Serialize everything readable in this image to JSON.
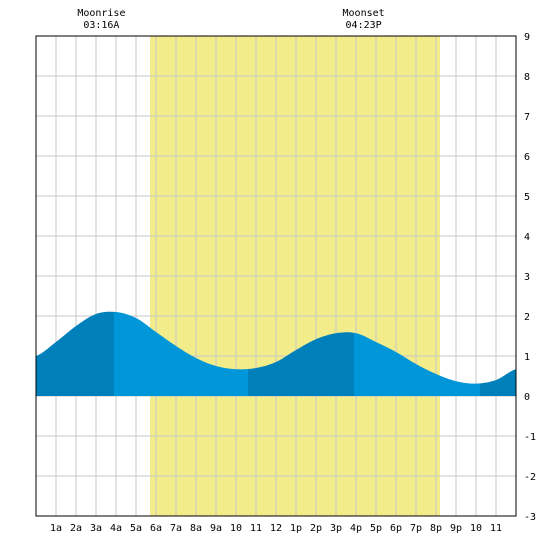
{
  "chart_data": {
    "type": "area",
    "title": "",
    "xlabel": "",
    "ylabel": "",
    "x_range": [
      0,
      24
    ],
    "ylim": [
      -3,
      9
    ],
    "y_ticks": [
      -3,
      -2,
      -1,
      0,
      1,
      2,
      3,
      4,
      5,
      6,
      7,
      8,
      9
    ],
    "x_ticks": [
      {
        "x": 1,
        "label": "1a"
      },
      {
        "x": 2,
        "label": "2a"
      },
      {
        "x": 3,
        "label": "3a"
      },
      {
        "x": 4,
        "label": "4a"
      },
      {
        "x": 5,
        "label": "5a"
      },
      {
        "x": 6,
        "label": "6a"
      },
      {
        "x": 7,
        "label": "7a"
      },
      {
        "x": 8,
        "label": "8a"
      },
      {
        "x": 9,
        "label": "9a"
      },
      {
        "x": 10,
        "label": "10"
      },
      {
        "x": 11,
        "label": "11"
      },
      {
        "x": 12,
        "label": "12"
      },
      {
        "x": 13,
        "label": "1p"
      },
      {
        "x": 14,
        "label": "2p"
      },
      {
        "x": 15,
        "label": "3p"
      },
      {
        "x": 16,
        "label": "4p"
      },
      {
        "x": 17,
        "label": "5p"
      },
      {
        "x": 18,
        "label": "6p"
      },
      {
        "x": 19,
        "label": "7p"
      },
      {
        "x": 20,
        "label": "8p"
      },
      {
        "x": 21,
        "label": "9p"
      },
      {
        "x": 22,
        "label": "10"
      },
      {
        "x": 23,
        "label": "11"
      }
    ],
    "grid": true,
    "daylight": {
      "start": 5.7,
      "end": 20.2
    },
    "annotations": [
      {
        "label": "Moonrise",
        "time": "03:16A",
        "x": 3.27
      },
      {
        "label": "Moonset",
        "time": "04:23P",
        "x": 16.38
      }
    ],
    "series": [
      {
        "x": [
          0,
          1,
          2,
          3,
          4,
          5,
          6,
          7,
          8,
          9,
          10,
          11,
          12,
          13,
          14,
          15,
          16,
          17,
          18,
          19,
          20,
          21,
          22,
          23,
          24
        ],
        "values": [
          1.0,
          1.35,
          1.75,
          2.05,
          2.1,
          1.95,
          1.6,
          1.25,
          0.95,
          0.75,
          0.67,
          0.7,
          0.85,
          1.15,
          1.42,
          1.57,
          1.57,
          1.35,
          1.1,
          0.8,
          0.55,
          0.37,
          0.31,
          0.4,
          0.67
        ]
      }
    ],
    "bands": [
      {
        "from": 0,
        "to": 3.9,
        "shade": "dark"
      },
      {
        "from": 3.9,
        "to": 10.6,
        "shade": "light"
      },
      {
        "from": 10.6,
        "to": 15.9,
        "shade": "dark"
      },
      {
        "from": 15.9,
        "to": 22.2,
        "shade": "light"
      },
      {
        "from": 22.2,
        "to": 24,
        "shade": "dark"
      }
    ],
    "colors": {
      "daylight": "#f2ec8a",
      "tide_light": "#0096d8",
      "tide_dark": "#0080bb",
      "grid": "#c8c8c8",
      "axis": "#000000",
      "background": "#ffffff"
    }
  }
}
